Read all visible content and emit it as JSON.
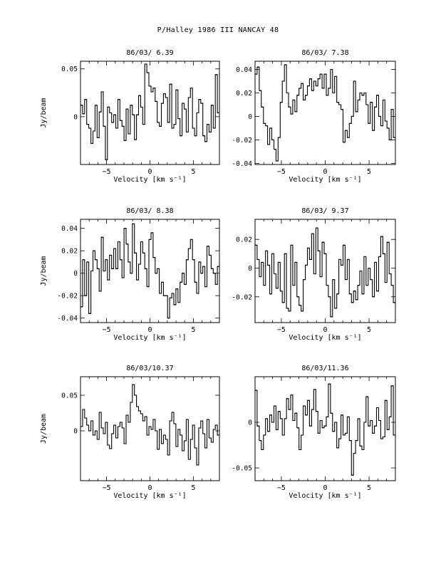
{
  "page": {
    "title": "P/Halley 1986 III   NANCAY     48"
  },
  "chart_data": [
    {
      "type": "line",
      "title": "86/03/ 6.39",
      "xlabel": "Velocity [km s⁻¹]",
      "ylabel": "Jy/beam",
      "xlim": [
        -8,
        8
      ],
      "ylim": [
        -0.05,
        0.058
      ],
      "xticks": [
        -5,
        0,
        5
      ],
      "yticks": [
        0,
        0.05
      ],
      "ytick_labels": [
        "0",
        "0.05"
      ],
      "x": [
        -8.0,
        -7.76,
        -7.52,
        -7.28,
        -7.04,
        -6.8,
        -6.56,
        -6.32,
        -6.08,
        -5.84,
        -5.6,
        -5.36,
        -5.12,
        -4.88,
        -4.64,
        -4.4,
        -4.16,
        -3.92,
        -3.68,
        -3.44,
        -3.2,
        -2.96,
        -2.72,
        -2.48,
        -2.24,
        -2.0,
        -1.76,
        -1.52,
        -1.28,
        -1.04,
        -0.8,
        -0.56,
        -0.32,
        -0.08,
        0.16,
        0.4,
        0.64,
        0.88,
        1.12,
        1.36,
        1.6,
        1.84,
        2.08,
        2.32,
        2.56,
        2.8,
        3.04,
        3.28,
        3.52,
        3.76,
        4.0,
        4.24,
        4.48,
        4.72,
        4.96,
        5.2,
        5.44,
        5.68,
        5.92,
        6.16,
        6.4,
        6.64,
        6.88,
        7.12,
        7.36,
        7.6,
        7.84
      ],
      "y": [
        0.012,
        0.003,
        0.018,
        -0.008,
        -0.012,
        -0.028,
        -0.015,
        0.012,
        -0.022,
        0.005,
        0.026,
        -0.01,
        -0.045,
        0.01,
        0.004,
        -0.006,
        0.002,
        -0.012,
        0.018,
        -0.004,
        -0.01,
        -0.025,
        0.008,
        -0.018,
        0.012,
        0.002,
        -0.024,
        0.002,
        0.022,
        0.01,
        -0.008,
        0.055,
        0.046,
        0.032,
        0.026,
        0.03,
        0.016,
        -0.006,
        -0.01,
        0.014,
        0.024,
        0.02,
        -0.006,
        0.034,
        -0.012,
        -0.008,
        0.028,
        -0.002,
        -0.02,
        0.014,
        0.008,
        -0.016,
        0.02,
        0.03,
        -0.012,
        -0.02,
        0.004,
        0.018,
        0.014,
        -0.02,
        -0.026,
        -0.008,
        -0.016,
        0.012,
        -0.012,
        0.044,
        0.004
      ]
    },
    {
      "type": "line",
      "title": "86/03/ 7.38",
      "xlabel": "Velocity [km s⁻¹]",
      "ylabel": "",
      "xlim": [
        -8,
        8
      ],
      "ylim": [
        -0.041,
        0.047
      ],
      "xticks": [
        -5,
        0,
        5
      ],
      "yticks": [
        -0.04,
        -0.02,
        0,
        0.02,
        0.04
      ],
      "ytick_labels": [
        "-0.04",
        "-0.02",
        "0",
        "0.02",
        "0.04"
      ],
      "x": [
        -8.0,
        -7.76,
        -7.52,
        -7.28,
        -7.04,
        -6.8,
        -6.56,
        -6.32,
        -6.08,
        -5.84,
        -5.6,
        -5.36,
        -5.12,
        -4.88,
        -4.64,
        -4.4,
        -4.16,
        -3.92,
        -3.68,
        -3.44,
        -3.2,
        -2.96,
        -2.72,
        -2.48,
        -2.24,
        -2.0,
        -1.76,
        -1.52,
        -1.28,
        -1.04,
        -0.8,
        -0.56,
        -0.32,
        -0.08,
        0.16,
        0.4,
        0.64,
        0.88,
        1.12,
        1.36,
        1.6,
        1.84,
        2.08,
        2.32,
        2.56,
        2.8,
        3.04,
        3.28,
        3.52,
        3.76,
        4.0,
        4.24,
        4.48,
        4.72,
        4.96,
        5.2,
        5.44,
        5.68,
        5.92,
        6.16,
        6.4,
        6.64,
        6.88,
        7.12,
        7.36,
        7.6,
        7.84
      ],
      "y": [
        0.036,
        0.042,
        0.022,
        0.008,
        -0.006,
        -0.008,
        -0.024,
        -0.01,
        -0.02,
        -0.028,
        -0.038,
        -0.018,
        0.012,
        0.03,
        0.044,
        0.02,
        0.008,
        0.002,
        0.014,
        0.004,
        0.018,
        0.024,
        0.028,
        0.014,
        0.018,
        0.026,
        0.032,
        0.022,
        0.03,
        0.026,
        0.032,
        0.036,
        0.024,
        0.036,
        0.018,
        0.024,
        0.04,
        0.02,
        0.034,
        0.012,
        0.01,
        0.006,
        -0.022,
        -0.012,
        -0.018,
        -0.006,
        0.0,
        0.03,
        0.004,
        0.014,
        0.02,
        0.018,
        0.02,
        0.01,
        -0.006,
        0.012,
        -0.012,
        0.008,
        0.018,
        0.0,
        -0.008,
        0.014,
        -0.004,
        -0.01,
        -0.02,
        0.006,
        -0.018
      ]
    },
    {
      "type": "line",
      "title": "86/03/ 8.38",
      "xlabel": "Velocity [km s⁻¹]",
      "ylabel": "Jy/beam",
      "xlim": [
        -8,
        8
      ],
      "ylim": [
        -0.044,
        0.048
      ],
      "xticks": [
        -5,
        0,
        5
      ],
      "yticks": [
        -0.04,
        -0.02,
        0,
        0.02,
        0.04
      ],
      "ytick_labels": [
        "-0.04",
        "-0.02",
        "0",
        "0.02",
        "0.04"
      ],
      "x": [
        -8.0,
        -7.76,
        -7.52,
        -7.28,
        -7.04,
        -6.8,
        -6.56,
        -6.32,
        -6.08,
        -5.84,
        -5.6,
        -5.36,
        -5.12,
        -4.88,
        -4.64,
        -4.4,
        -4.16,
        -3.92,
        -3.68,
        -3.44,
        -3.2,
        -2.96,
        -2.72,
        -2.48,
        -2.24,
        -2.0,
        -1.76,
        -1.52,
        -1.28,
        -1.04,
        -0.8,
        -0.56,
        -0.32,
        -0.08,
        0.16,
        0.4,
        0.64,
        0.88,
        1.12,
        1.36,
        1.6,
        1.84,
        2.08,
        2.32,
        2.56,
        2.8,
        3.04,
        3.28,
        3.52,
        3.76,
        4.0,
        4.24,
        4.48,
        4.72,
        4.96,
        5.2,
        5.44,
        5.68,
        5.92,
        6.16,
        6.4,
        6.64,
        6.88,
        7.12,
        7.36,
        7.6,
        7.84
      ],
      "y": [
        -0.03,
        0.012,
        -0.02,
        0.01,
        -0.036,
        0.002,
        0.02,
        0.012,
        0.004,
        -0.016,
        0.032,
        0.002,
        0.012,
        -0.006,
        0.016,
        0.004,
        0.022,
        0.004,
        0.028,
        0.012,
        -0.004,
        0.04,
        0.026,
        0.01,
        0.0,
        0.044,
        0.018,
        -0.006,
        0.008,
        0.028,
        0.018,
        0.004,
        -0.012,
        0.03,
        0.036,
        0.014,
        0.0,
        0.004,
        -0.018,
        -0.008,
        -0.02,
        -0.02,
        -0.04,
        -0.022,
        -0.018,
        -0.028,
        -0.014,
        -0.026,
        -0.008,
        0.0,
        -0.01,
        0.012,
        0.022,
        0.03,
        0.012,
        -0.008,
        -0.018,
        0.01,
        0.0,
        0.006,
        -0.012,
        0.024,
        0.016,
        0.004,
        0.0,
        -0.01,
        0.006
      ]
    },
    {
      "type": "line",
      "title": "86/03/ 9.37",
      "xlabel": "Velocity [km s⁻¹]",
      "ylabel": "",
      "xlim": [
        -8,
        8
      ],
      "ylim": [
        -0.038,
        0.034
      ],
      "xticks": [
        -5,
        0,
        5
      ],
      "yticks": [
        -0.02,
        0,
        0.02
      ],
      "ytick_labels": [
        "-0.02",
        "0",
        "0.02"
      ],
      "x": [
        -8.0,
        -7.76,
        -7.52,
        -7.28,
        -7.04,
        -6.8,
        -6.56,
        -6.32,
        -6.08,
        -5.84,
        -5.6,
        -5.36,
        -5.12,
        -4.88,
        -4.64,
        -4.4,
        -4.16,
        -3.92,
        -3.68,
        -3.44,
        -3.2,
        -2.96,
        -2.72,
        -2.48,
        -2.24,
        -2.0,
        -1.76,
        -1.52,
        -1.28,
        -1.04,
        -0.8,
        -0.56,
        -0.32,
        -0.08,
        0.16,
        0.4,
        0.64,
        0.88,
        1.12,
        1.36,
        1.6,
        1.84,
        2.08,
        2.32,
        2.56,
        2.8,
        3.04,
        3.28,
        3.52,
        3.76,
        4.0,
        4.24,
        4.48,
        4.72,
        4.96,
        5.2,
        5.44,
        5.68,
        5.92,
        6.16,
        6.4,
        6.64,
        6.88,
        7.12,
        7.36,
        7.6,
        7.84
      ],
      "y": [
        0.016,
        0.006,
        -0.006,
        0.004,
        -0.012,
        0.012,
        0.002,
        -0.018,
        0.01,
        -0.004,
        -0.014,
        0.004,
        -0.016,
        -0.024,
        0.01,
        -0.028,
        -0.03,
        0.016,
        -0.012,
        0.004,
        -0.02,
        -0.026,
        -0.03,
        -0.008,
        0.002,
        0.014,
        0.006,
        0.024,
        -0.004,
        0.028,
        0.012,
        -0.006,
        0.018,
        0.01,
        -0.012,
        -0.02,
        -0.034,
        -0.008,
        -0.028,
        -0.018,
        0.006,
        0.002,
        0.016,
        -0.008,
        0.006,
        -0.018,
        -0.024,
        -0.016,
        -0.022,
        -0.012,
        -0.002,
        -0.018,
        0.008,
        -0.012,
        0.0,
        -0.008,
        -0.02,
        0.004,
        -0.016,
        0.008,
        0.022,
        0.01,
        -0.01,
        0.018,
        -0.004,
        -0.012,
        -0.024
      ]
    },
    {
      "type": "line",
      "title": "86/03/10.37",
      "xlabel": "Velocity [km s⁻¹]",
      "ylabel": "Jy/beam",
      "xlim": [
        -8,
        8
      ],
      "ylim": [
        -0.07,
        0.076
      ],
      "xticks": [
        -5,
        0,
        5
      ],
      "yticks": [
        0,
        0.05
      ],
      "ytick_labels": [
        "0",
        "0.05"
      ],
      "x": [
        -8.0,
        -7.76,
        -7.52,
        -7.28,
        -7.04,
        -6.8,
        -6.56,
        -6.32,
        -6.08,
        -5.84,
        -5.6,
        -5.36,
        -5.12,
        -4.88,
        -4.64,
        -4.4,
        -4.16,
        -3.92,
        -3.68,
        -3.44,
        -3.2,
        -2.96,
        -2.72,
        -2.48,
        -2.24,
        -2.0,
        -1.76,
        -1.52,
        -1.28,
        -1.04,
        -0.8,
        -0.56,
        -0.32,
        -0.08,
        0.16,
        0.4,
        0.64,
        0.88,
        1.12,
        1.36,
        1.6,
        1.84,
        2.08,
        2.32,
        2.56,
        2.8,
        3.04,
        3.28,
        3.52,
        3.76,
        4.0,
        4.24,
        4.48,
        4.72,
        4.96,
        5.2,
        5.44,
        5.68,
        5.92,
        6.16,
        6.4,
        6.64,
        6.88,
        7.12,
        7.36,
        7.6,
        7.84
      ],
      "y": [
        0.006,
        0.03,
        0.018,
        0.008,
        0.0,
        0.014,
        -0.006,
        0.0,
        -0.012,
        0.026,
        0.004,
        -0.004,
        0.012,
        -0.02,
        -0.025,
        -0.004,
        0.008,
        -0.01,
        0.006,
        0.012,
        0.004,
        -0.018,
        0.022,
        0.012,
        0.04,
        0.065,
        0.05,
        0.034,
        0.028,
        0.024,
        0.014,
        0.02,
        -0.006,
        0.006,
        0.002,
        0.016,
        0.0,
        -0.026,
        0.002,
        -0.018,
        -0.006,
        -0.012,
        -0.034,
        0.014,
        0.026,
        0.01,
        -0.022,
        0.002,
        -0.006,
        -0.028,
        -0.014,
        0.016,
        -0.04,
        -0.012,
        0.008,
        -0.024,
        -0.048,
        0.004,
        0.014,
        -0.004,
        -0.024,
        0.016,
        -0.01,
        -0.016,
        0.002,
        0.008,
        -0.006
      ]
    },
    {
      "type": "line",
      "title": "86/03/11.36",
      "xlabel": "Velocity [km s⁻¹]",
      "ylabel": "",
      "xlim": [
        -8,
        8
      ],
      "ylim": [
        -0.064,
        0.05
      ],
      "xticks": [
        -5,
        0,
        5
      ],
      "yticks": [
        -0.05,
        0
      ],
      "ytick_labels": [
        "-0.05",
        "0"
      ],
      "x": [
        -8.0,
        -7.76,
        -7.52,
        -7.28,
        -7.04,
        -6.8,
        -6.56,
        -6.32,
        -6.08,
        -5.84,
        -5.6,
        -5.36,
        -5.12,
        -4.88,
        -4.64,
        -4.4,
        -4.16,
        -3.92,
        -3.68,
        -3.44,
        -3.2,
        -2.96,
        -2.72,
        -2.48,
        -2.24,
        -2.0,
        -1.76,
        -1.52,
        -1.28,
        -1.04,
        -0.8,
        -0.56,
        -0.32,
        -0.08,
        0.16,
        0.4,
        0.64,
        0.88,
        1.12,
        1.36,
        1.6,
        1.84,
        2.08,
        2.32,
        2.56,
        2.8,
        3.04,
        3.28,
        3.52,
        3.76,
        4.0,
        4.24,
        4.48,
        4.72,
        4.96,
        5.2,
        5.44,
        5.68,
        5.92,
        6.16,
        6.4,
        6.64,
        6.88,
        7.12,
        7.36,
        7.6,
        7.84
      ],
      "y": [
        0.035,
        -0.004,
        -0.02,
        -0.03,
        -0.014,
        0.004,
        -0.01,
        0.008,
        0.0,
        0.018,
        -0.008,
        0.012,
        0.004,
        -0.014,
        0.004,
        0.026,
        0.014,
        0.03,
        0.002,
        0.01,
        -0.006,
        -0.03,
        -0.014,
        0.018,
        0.008,
        0.024,
        -0.004,
        0.014,
        0.036,
        0.012,
        -0.012,
        0.002,
        -0.006,
        -0.004,
        0.006,
        0.042,
        0.01,
        -0.01,
        0.0,
        -0.028,
        -0.018,
        0.008,
        -0.014,
        -0.012,
        0.006,
        -0.02,
        -0.058,
        -0.034,
        -0.02,
        0.004,
        -0.026,
        -0.03,
        0.0,
        0.028,
        -0.004,
        0.002,
        -0.012,
        -0.004,
        0.016,
        0.002,
        -0.018,
        -0.016,
        0.024,
        -0.008,
        0.006,
        0.04,
        -0.014
      ]
    }
  ]
}
